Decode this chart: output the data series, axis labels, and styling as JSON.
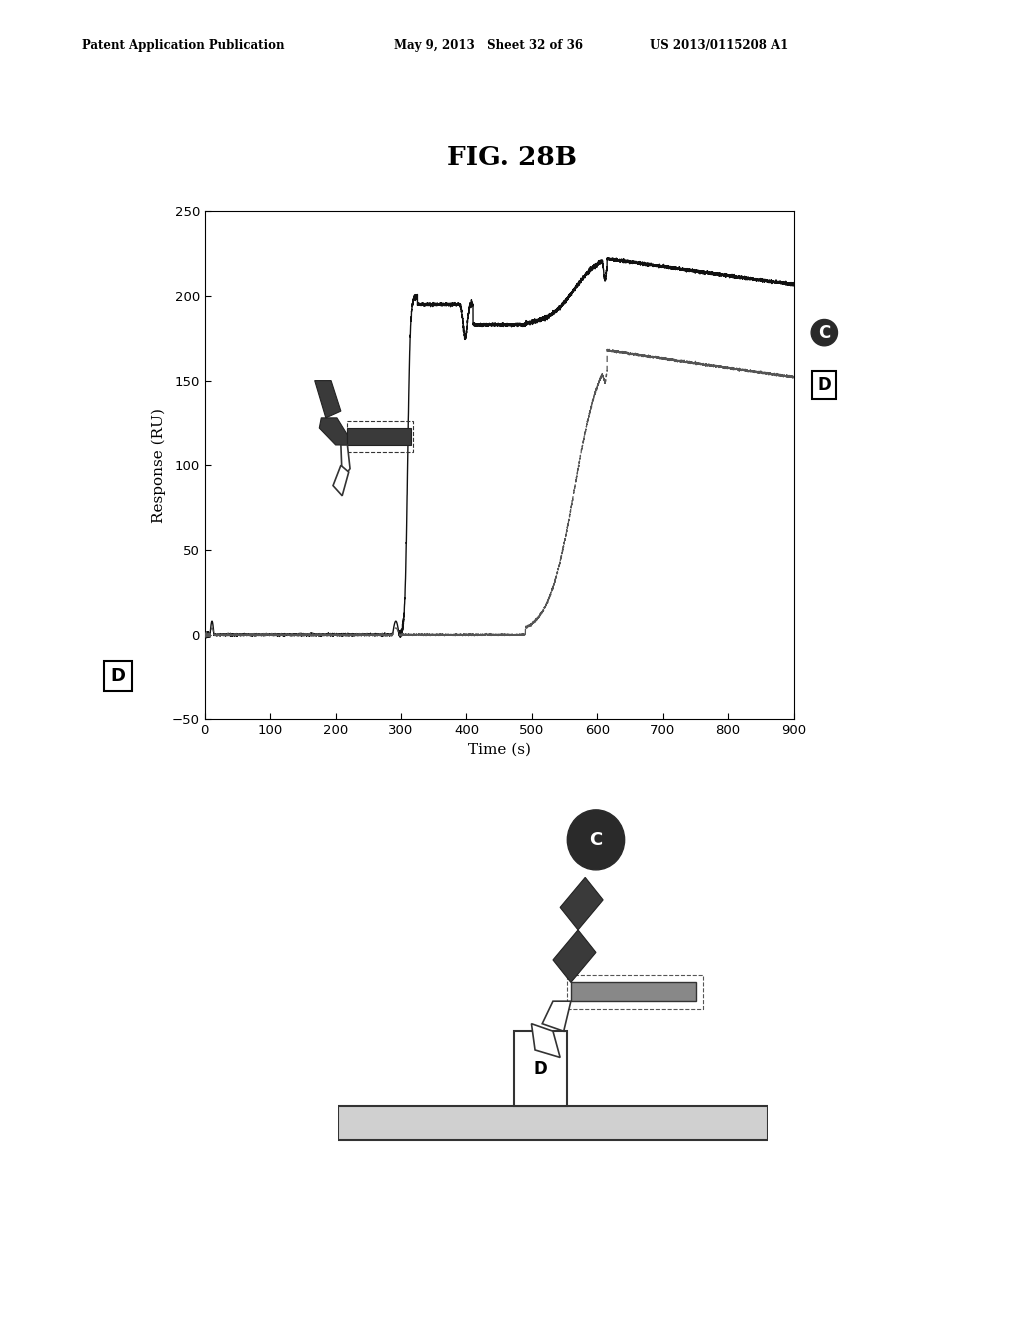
{
  "title": "FIG. 28B",
  "xlabel": "Time (s)",
  "ylabel": "Response (RU)",
  "xlim": [
    0,
    900
  ],
  "ylim": [
    -50,
    250
  ],
  "yticks": [
    -50,
    0,
    50,
    100,
    150,
    200,
    250
  ],
  "xticks": [
    0,
    100,
    200,
    300,
    400,
    500,
    600,
    700,
    800,
    900
  ],
  "background_color": "#ffffff"
}
